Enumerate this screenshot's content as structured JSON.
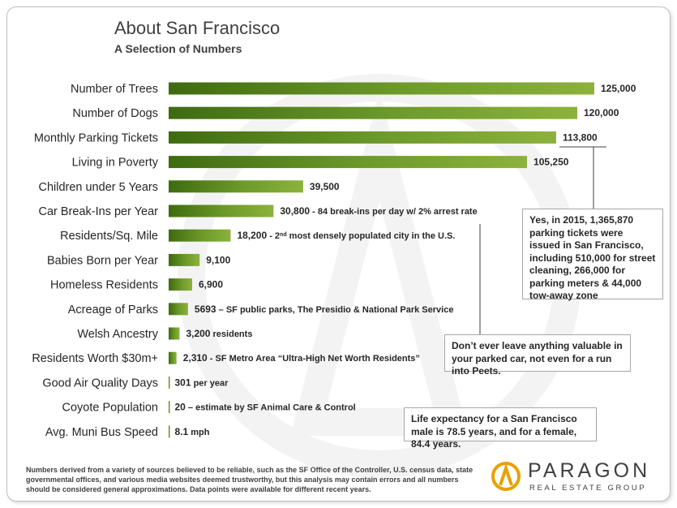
{
  "header": {
    "title": "About San Francisco",
    "subtitle": "A Selection of Numbers"
  },
  "chart_data": {
    "type": "bar",
    "orientation": "horizontal",
    "title": "About San Francisco",
    "subtitle": "A Selection of Numbers",
    "xlim": [
      0,
      125000
    ],
    "grid": false,
    "legend": "none",
    "bar_color": "#5f8f1f",
    "categories": [
      "Number of Trees",
      "Number of Dogs",
      "Monthly Parking Tickets",
      "Living in Poverty",
      "Children under 5 Years",
      "Car Break-Ins per Year",
      "Residents/Sq. Mile",
      "Babies Born per Year",
      "Homeless Residents",
      "Acreage of Parks",
      "Welsh Ancestry",
      "Residents Worth $30m+",
      "Good Air Quality Days",
      "Coyote Population",
      "Avg. Muni Bus Speed"
    ],
    "values": [
      125000,
      120000,
      113800,
      105250,
      39500,
      30800,
      18200,
      9100,
      6900,
      5693,
      3200,
      2310,
      301,
      20,
      8.1
    ],
    "data_labels": [
      "125,000",
      "120,000",
      "113,800",
      "105,250",
      "39,500",
      "30,800",
      "18,200",
      "9,100",
      "6,900",
      "5693",
      "3,200",
      "2,310",
      "301",
      "20",
      "8.1"
    ],
    "label_notes": [
      "",
      "",
      "",
      "",
      "",
      " - 84 break-ins per day w/ 2% arrest rate",
      " - 2nd most densely populated city in the U.S.",
      "",
      "",
      " – SF public parks, The Presidio & National Park Service",
      " residents",
      " - SF Metro Area “Ultra-High Net Worth Residents”",
      " per year",
      " – estimate by SF Animal Care & Control",
      " mph"
    ]
  },
  "callouts": {
    "parking": "Yes,  in 2015, 1,365,870 parking tickets were issued in San Francisco, including 510,000 for street cleaning, 266,000 for parking meters & 44,000 tow-away zone",
    "breakins": "Don’t ever  leave anything valuable in your parked car, not even for a run into Peets.",
    "life": "Life expectancy for a San Francisco male is 78.5 years, and for a female, 84.4 years."
  },
  "footer": {
    "note": "Numbers derived from a variety of sources believed to be reliable, such as the SF Office of the Controller, U.S. census data, state governmental offices, and various media websites deemed trustworthy, but this analysis may contain errors and all numbers should be considered general approximations. Data points were available for different recent years."
  },
  "logo": {
    "name": "PARAGON",
    "tagline": "REAL ESTATE GROUP",
    "icon": "paragon-a-icon",
    "color": "#e8a100"
  }
}
